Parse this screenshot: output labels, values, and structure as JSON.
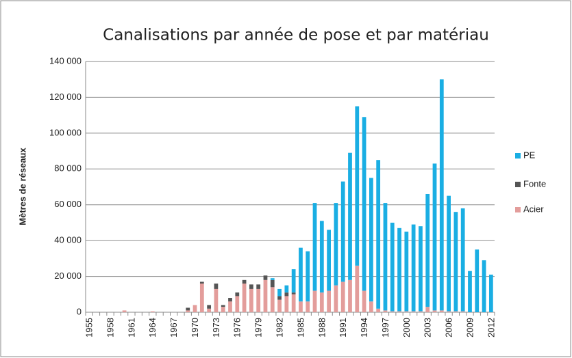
{
  "chart_data": {
    "type": "stacked_bar",
    "title": "Canalisations par année de pose et par matériau",
    "y_label": "Mètres de réseaux",
    "categories": [
      "1955",
      null,
      null,
      "1958",
      null,
      null,
      "1961",
      null,
      null,
      "1964",
      null,
      null,
      "1967",
      null,
      null,
      "1970",
      null,
      null,
      "1973",
      null,
      null,
      "1976",
      null,
      null,
      "1979",
      null,
      null,
      "1982",
      null,
      null,
      "1985",
      null,
      null,
      "1988",
      null,
      null,
      "1991",
      null,
      null,
      "1994",
      null,
      null,
      "1997",
      null,
      null,
      "2000",
      null,
      null,
      "2003",
      null,
      null,
      "2006",
      null,
      null,
      "2009",
      null,
      null,
      "2012"
    ],
    "series": [
      {
        "name": "Acier",
        "color": "#e39d9b",
        "values": [
          0,
          0,
          0,
          0,
          0,
          1000,
          0,
          0,
          0,
          500,
          0,
          0,
          0,
          0,
          1000,
          4000,
          16000,
          2000,
          13000,
          3000,
          6000,
          9000,
          16000,
          13000,
          13000,
          18000,
          14000,
          7000,
          9000,
          10000,
          6000,
          6000,
          12000,
          11000,
          12000,
          15000,
          17000,
          18000,
          26000,
          12000,
          6000,
          2000,
          1000,
          500,
          500,
          500,
          500,
          500,
          3000,
          1000,
          1000,
          500,
          500,
          500,
          0,
          0,
          0,
          0
        ]
      },
      {
        "name": "Fonte",
        "color": "#555555",
        "values": [
          0,
          0,
          0,
          0,
          0,
          0,
          0,
          0,
          0,
          0,
          0,
          0,
          0,
          0,
          1500,
          0,
          1000,
          2000,
          3000,
          1000,
          2000,
          2000,
          2000,
          2500,
          2500,
          2500,
          4000,
          2000,
          2000,
          1000,
          0,
          0,
          0,
          0,
          0,
          0,
          0,
          0,
          0,
          0,
          0,
          0,
          0,
          0,
          0,
          0,
          0,
          0,
          0,
          0,
          0,
          0,
          0,
          0,
          0,
          0,
          0,
          0
        ]
      },
      {
        "name": "PE",
        "color": "#1aaee3",
        "values": [
          0,
          0,
          0,
          0,
          0,
          0,
          0,
          0,
          0,
          0,
          0,
          0,
          0,
          0,
          0,
          0,
          0,
          0,
          0,
          0,
          0,
          0,
          0,
          0,
          0,
          0,
          1000,
          4000,
          4000,
          13000,
          30000,
          28000,
          49000,
          40000,
          34000,
          46000,
          56000,
          71000,
          89000,
          97000,
          69000,
          83000,
          60000,
          49500,
          46500,
          44500,
          48500,
          47500,
          63000,
          82000,
          129000,
          64500,
          55500,
          57500,
          23000,
          35000,
          29000,
          21000
        ]
      }
    ],
    "ylim": [
      0,
      140000
    ],
    "yticks": [
      0,
      {
        "value": 20000,
        "label": "20 000"
      },
      {
        "value": 40000,
        "label": "40 000"
      },
      {
        "value": 60000,
        "label": "60 000"
      },
      {
        "value": 80000,
        "label": "80 000"
      },
      {
        "value": 100000,
        "label": "100 000"
      },
      {
        "value": 120000,
        "label": "120 000"
      },
      {
        "value": 140000,
        "label": "140 000"
      }
    ],
    "grid": true,
    "legend": "right"
  }
}
